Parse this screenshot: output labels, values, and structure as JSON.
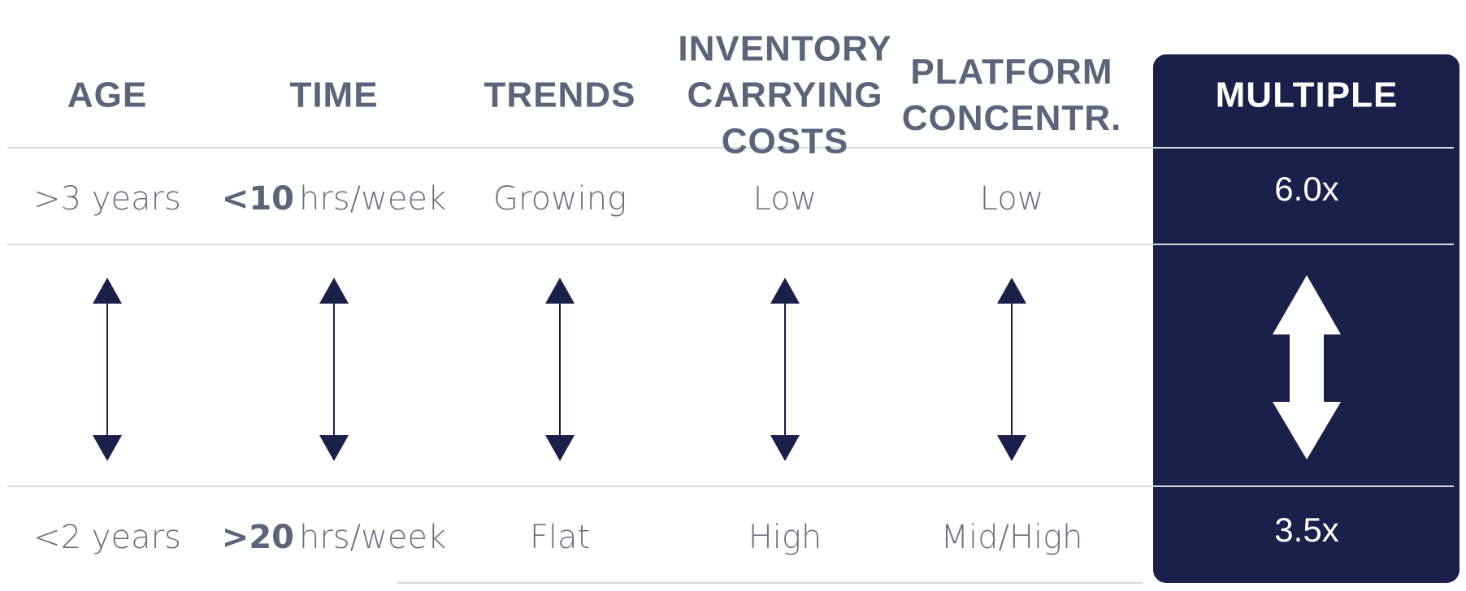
{
  "headers": [
    [
      "AGE"
    ],
    [
      "TIME"
    ],
    [
      "TRENDS"
    ],
    [
      "INVENTORY",
      "CARRYING",
      "COSTS"
    ],
    [
      "PLATFORM",
      "CONCENTR."
    ],
    [
      "MULTIPLE"
    ]
  ],
  "top_row": {
    "age": ">3 years",
    "time": {
      "number": "<10",
      "unit": "hrs/week"
    },
    "trends": "Growing",
    "inventory": "Low",
    "platform": "Low",
    "multiple": "6.0x"
  },
  "bottom_row": {
    "age": "<2 years",
    "time": {
      "number": ">20",
      "unit": "hrs/week"
    },
    "trends": "Flat",
    "inventory": "High",
    "platform": "Mid/High",
    "multiple": "3.5x"
  }
}
